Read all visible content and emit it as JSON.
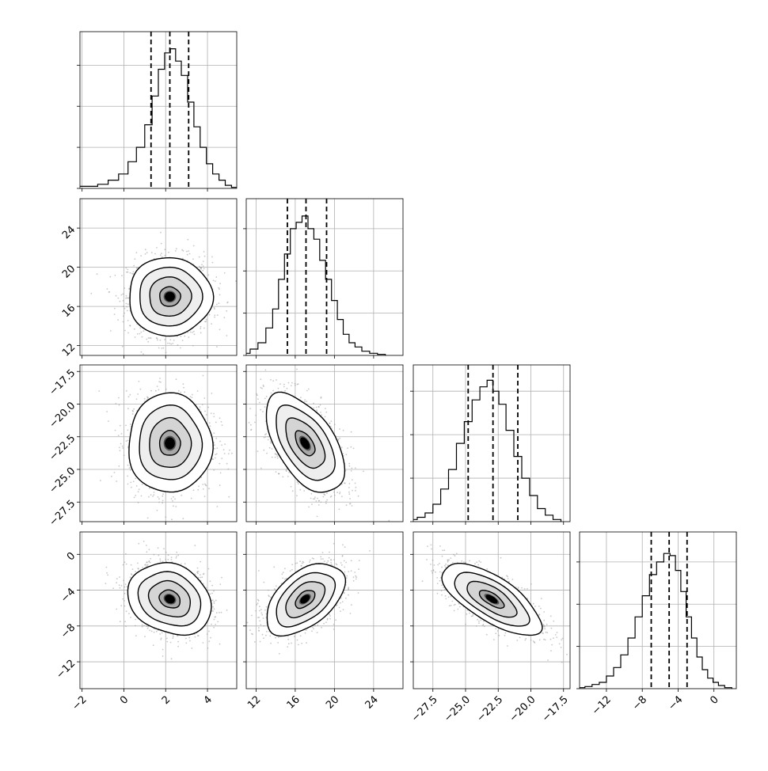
{
  "chart_data": {
    "type": "corner",
    "parameters": [
      {
        "ticks": [
          -2,
          0,
          2,
          4
        ],
        "tick_labels": [
          "−2",
          "0",
          "2",
          "4"
        ],
        "range": [
          -2.1,
          5.4
        ],
        "quantiles": [
          1.3,
          2.2,
          3.1
        ],
        "hist_max": 72,
        "hist_ticks": [
          0,
          20,
          40,
          60
        ],
        "hist": [
          [
            -2.0,
            1
          ],
          [
            -1.5,
            1
          ],
          [
            -1.0,
            2
          ],
          [
            -0.5,
            4
          ],
          [
            0.0,
            7
          ],
          [
            0.4,
            13
          ],
          [
            0.8,
            20
          ],
          [
            1.2,
            31
          ],
          [
            1.5,
            45
          ],
          [
            1.8,
            58
          ],
          [
            2.1,
            66
          ],
          [
            2.35,
            68
          ],
          [
            2.6,
            62
          ],
          [
            2.9,
            55
          ],
          [
            3.2,
            42
          ],
          [
            3.5,
            30
          ],
          [
            3.8,
            20
          ],
          [
            4.1,
            12
          ],
          [
            4.4,
            7
          ],
          [
            4.7,
            4
          ],
          [
            5.0,
            1.5
          ],
          [
            5.3,
            0.5
          ]
        ]
      },
      {
        "ticks": [
          12,
          16,
          20,
          24
        ],
        "tick_labels": [
          "12",
          "16",
          "20",
          "24"
        ],
        "range": [
          11.0,
          27.0
        ],
        "quantiles": [
          15.2,
          17.1,
          19.2
        ],
        "hist_max": 70,
        "hist_ticks": [
          0,
          20,
          40,
          60
        ],
        "hist": [
          [
            11.0,
            1
          ],
          [
            11.8,
            3
          ],
          [
            12.6,
            6
          ],
          [
            13.4,
            13
          ],
          [
            14.0,
            22
          ],
          [
            14.6,
            36
          ],
          [
            15.2,
            48
          ],
          [
            15.8,
            60
          ],
          [
            16.4,
            63
          ],
          [
            17.0,
            66
          ],
          [
            17.6,
            60
          ],
          [
            18.2,
            55
          ],
          [
            18.8,
            45
          ],
          [
            19.4,
            36
          ],
          [
            20.0,
            26
          ],
          [
            20.6,
            17
          ],
          [
            21.2,
            10
          ],
          [
            21.8,
            6
          ],
          [
            22.4,
            4
          ],
          [
            23.2,
            2
          ],
          [
            24.0,
            1
          ],
          [
            24.8,
            0.5
          ]
        ]
      },
      {
        "ticks": [
          -27.5,
          -25.0,
          -22.5,
          -20.0,
          -17.5
        ],
        "tick_labels": [
          "−27.5",
          "−25.0",
          "−22.5",
          "−20.0",
          "−17.5"
        ],
        "range": [
          -29.0,
          -17.0
        ],
        "quantiles": [
          -24.8,
          -22.9,
          -21.0
        ],
        "hist_max": 68,
        "hist_ticks": [
          0,
          20,
          40,
          60
        ],
        "hist": [
          [
            -29.0,
            1
          ],
          [
            -28.4,
            2
          ],
          [
            -27.8,
            4
          ],
          [
            -27.2,
            8
          ],
          [
            -26.6,
            15
          ],
          [
            -26.0,
            24
          ],
          [
            -25.4,
            36
          ],
          [
            -24.8,
            46
          ],
          [
            -24.2,
            56
          ],
          [
            -23.6,
            62
          ],
          [
            -23.1,
            65
          ],
          [
            -22.7,
            60
          ],
          [
            -22.2,
            54
          ],
          [
            -21.6,
            42
          ],
          [
            -21.0,
            30
          ],
          [
            -20.4,
            20
          ],
          [
            -19.8,
            12
          ],
          [
            -19.2,
            6
          ],
          [
            -18.6,
            3
          ],
          [
            -18.0,
            1
          ]
        ]
      },
      {
        "ticks": [
          -12,
          -8,
          -4,
          0
        ],
        "tick_labels": [
          "−12",
          "−8",
          "−4",
          "0"
        ],
        "range": [
          -15.0,
          2.5
        ],
        "quantiles": [
          -7.0,
          -5.0,
          -3.0
        ],
        "hist_max": 70,
        "hist_ticks": [
          0,
          20,
          40,
          60
        ],
        "hist": [
          [
            -14.8,
            0.5
          ],
          [
            -14.0,
            1
          ],
          [
            -13.2,
            2
          ],
          [
            -12.4,
            3
          ],
          [
            -11.6,
            6
          ],
          [
            -10.8,
            10
          ],
          [
            -10.0,
            16
          ],
          [
            -9.2,
            24
          ],
          [
            -8.4,
            34
          ],
          [
            -7.6,
            44
          ],
          [
            -6.8,
            54
          ],
          [
            -6.0,
            60
          ],
          [
            -5.2,
            64
          ],
          [
            -4.6,
            63
          ],
          [
            -4.0,
            56
          ],
          [
            -3.4,
            46
          ],
          [
            -2.8,
            34
          ],
          [
            -2.2,
            24
          ],
          [
            -1.6,
            15
          ],
          [
            -1.0,
            9
          ],
          [
            -0.4,
            5
          ],
          [
            0.2,
            3
          ],
          [
            0.8,
            1.5
          ],
          [
            1.6,
            0.5
          ]
        ]
      }
    ],
    "pairs": [
      {
        "row": 1,
        "col": 0,
        "rho": 0.0
      },
      {
        "row": 2,
        "col": 0,
        "rho": 0.0
      },
      {
        "row": 2,
        "col": 1,
        "rho": -0.55
      },
      {
        "row": 3,
        "col": 0,
        "rho": -0.2
      },
      {
        "row": 3,
        "col": 1,
        "rho": 0.5
      },
      {
        "row": 3,
        "col": 2,
        "rho": -0.7
      }
    ],
    "marginals": [
      {
        "mean": 2.2,
        "sd": 1.0
      },
      {
        "mean": 17.0,
        "sd": 2.0
      },
      {
        "mean": -23.0,
        "sd": 1.9
      },
      {
        "mean": -5.0,
        "sd": 2.0
      }
    ],
    "contour_levels_sigma": [
      0.5,
      1.0,
      1.5,
      2.0
    ],
    "grid": true,
    "colors": {
      "line": "#000000",
      "grid": "#b0b0b0",
      "scatter": "#9a9a9a",
      "fill": "#ffffff"
    }
  }
}
